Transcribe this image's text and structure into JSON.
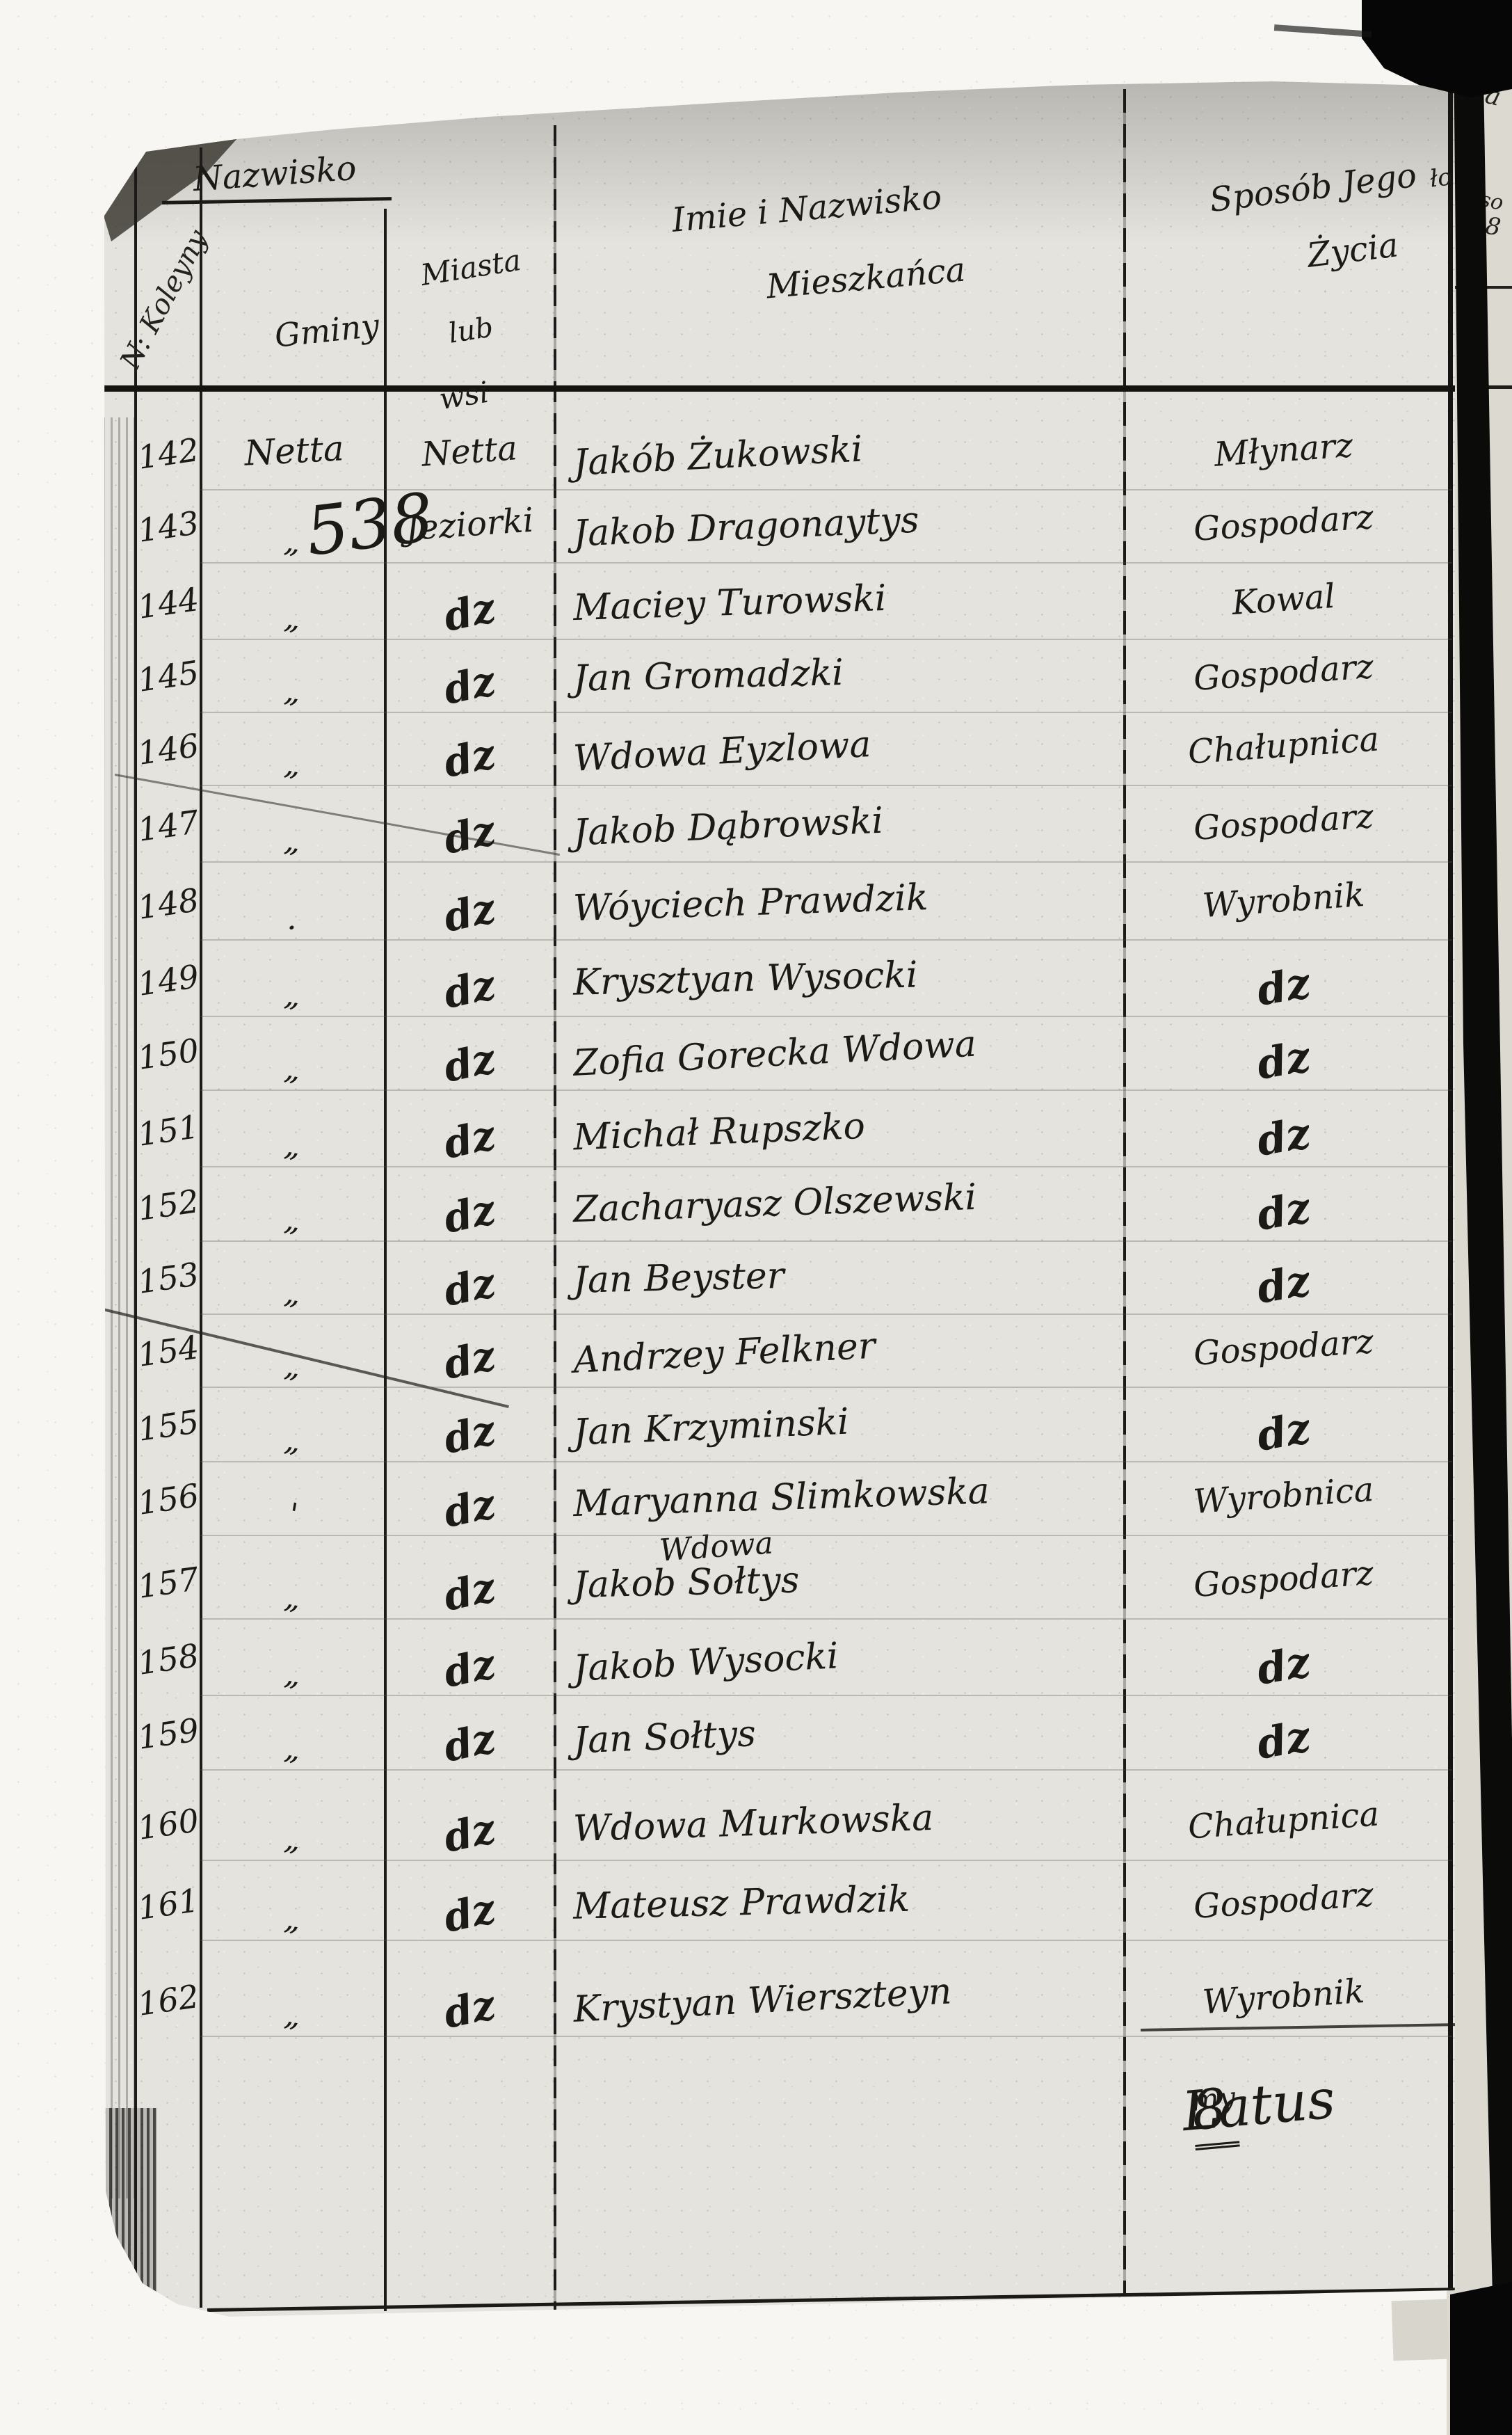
{
  "header": {
    "col_no_vertical": "N: Koleyny",
    "nazwisko": "Nazwisko",
    "gminy": "Gminy",
    "miasta_line1": "Miasta",
    "miasta_line2": "lub",
    "miasta_line3": "wsi",
    "imie_line1": "Imie i Nazwisko",
    "imie_line2": "Mieszkańca",
    "sposob_line1": "Sposób Jego",
    "sposob_frag": "ło",
    "sposob_line2": "Życia"
  },
  "annotations": {
    "number_538": "538",
    "latus_word": "Latus",
    "latus_num": "8",
    "latus_sup": "my"
  },
  "rows": [
    {
      "no": "142",
      "gmina": "Netta",
      "miasto": "Netta",
      "name": "Jakób Żukowski",
      "occ": "Młynarz"
    },
    {
      "no": "143",
      "gmina": "„",
      "miasto": "Jeziorki",
      "name": "Jakob Dragonaytys",
      "occ": "Gospodarz"
    },
    {
      "no": "144",
      "gmina": "„",
      "miasto": "dz",
      "name": "Maciey Turowski",
      "occ": "Kowal"
    },
    {
      "no": "145",
      "gmina": "„",
      "miasto": "dz",
      "name": "Jan Gromadzki",
      "occ": "Gospodarz"
    },
    {
      "no": "146",
      "gmina": "„",
      "miasto": "dz",
      "name": "Wdowa Eyzlowa",
      "occ": "Chałupnica"
    },
    {
      "no": "147",
      "gmina": "„",
      "miasto": "dz",
      "name": "Jakob Dąbrowski",
      "occ": "Gospodarz"
    },
    {
      "no": "148",
      "gmina": ".",
      "miasto": "dz",
      "name": "Wóyciech Prawdzik",
      "occ": "Wyrobnik"
    },
    {
      "no": "149",
      "gmina": "„",
      "miasto": "dz",
      "name": "Krysztyan Wysocki",
      "occ": "dz"
    },
    {
      "no": "150",
      "gmina": "„",
      "miasto": "dz",
      "name": "Zofia Gorecka Wdowa",
      "occ": "dz"
    },
    {
      "no": "151",
      "gmina": "„",
      "miasto": "dz",
      "name": "Michał Rupszko",
      "occ": "dz"
    },
    {
      "no": "152",
      "gmina": "„",
      "miasto": "dz",
      "name": "Zacharyasz Olszewski",
      "occ": "dz"
    },
    {
      "no": "153",
      "gmina": "„",
      "miasto": "dz",
      "name": "Jan Beyster",
      "occ": "dz"
    },
    {
      "no": "154",
      "gmina": "„",
      "miasto": "dz",
      "name": "Andrzey Felkner",
      "occ": "Gospodarz"
    },
    {
      "no": "155",
      "gmina": "„",
      "miasto": "dz",
      "name": "Jan Krzyminski",
      "occ": "dz"
    },
    {
      "no": "156",
      "gmina": "'",
      "miasto": "dz",
      "name": "Maryanna Slimkowska",
      "name2": "Wdowa",
      "occ": "Wyrobnica"
    },
    {
      "no": "157",
      "gmina": "„",
      "miasto": "dz",
      "name": "Jakob Sołtys",
      "occ": "Gospodarz"
    },
    {
      "no": "158",
      "gmina": "„",
      "miasto": "dz",
      "name": "Jakob Wysocki",
      "occ": "dz"
    },
    {
      "no": "159",
      "gmina": "„",
      "miasto": "dz",
      "name": "Jan Sołtys",
      "occ": "dz"
    },
    {
      "no": "160",
      "gmina": "„",
      "miasto": "dz",
      "name": "Wdowa Murkowska",
      "occ": "Chałupnica"
    },
    {
      "no": "161",
      "gmina": "„",
      "miasto": "dz",
      "name": "Mateusz Prawdzik",
      "occ": "Gospodarz"
    },
    {
      "no": "162",
      "gmina": "„",
      "miasto": "dz",
      "name": "Krystyan Wierszteyn",
      "occ": "Wyrobnik"
    }
  ],
  "sliver_fragments": {
    "f1": "a",
    "f2": "so",
    "f3": "8"
  },
  "colors": {
    "ink": "#1b1a17",
    "page": "#e4e3de",
    "scan_bg": "#f7f6f3",
    "gutter": "#0b0b0a"
  }
}
